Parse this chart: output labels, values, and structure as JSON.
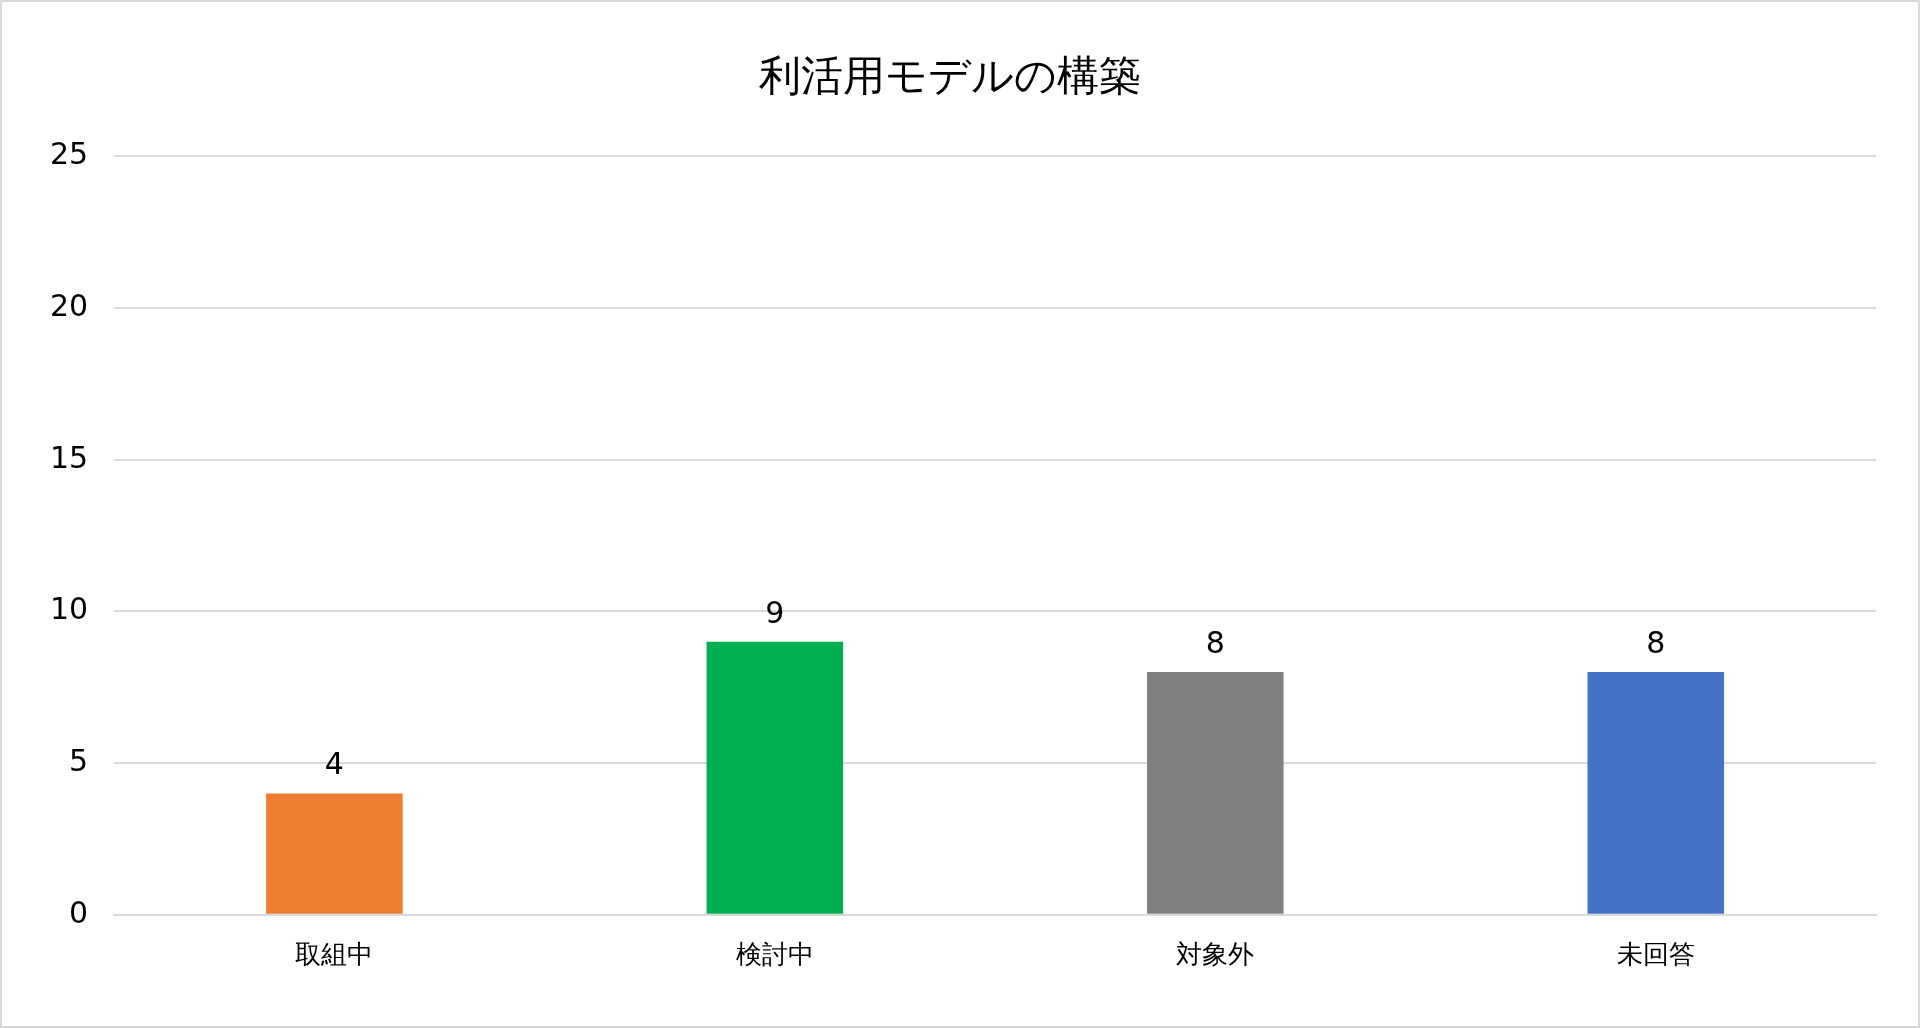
{
  "chart_data": {
    "type": "bar",
    "title": "利活用モデルの構築",
    "categories": [
      "取組中",
      "検討中",
      "対象外",
      "未回答"
    ],
    "values": [
      4,
      9,
      8,
      8
    ],
    "colors": [
      "#ed7d31",
      "#00b050",
      "#808080",
      "#4472c4"
    ],
    "ylim": [
      0,
      25
    ],
    "yticks": [
      0,
      5,
      10,
      15,
      20,
      25
    ],
    "grid": "y",
    "data_labels": true
  }
}
